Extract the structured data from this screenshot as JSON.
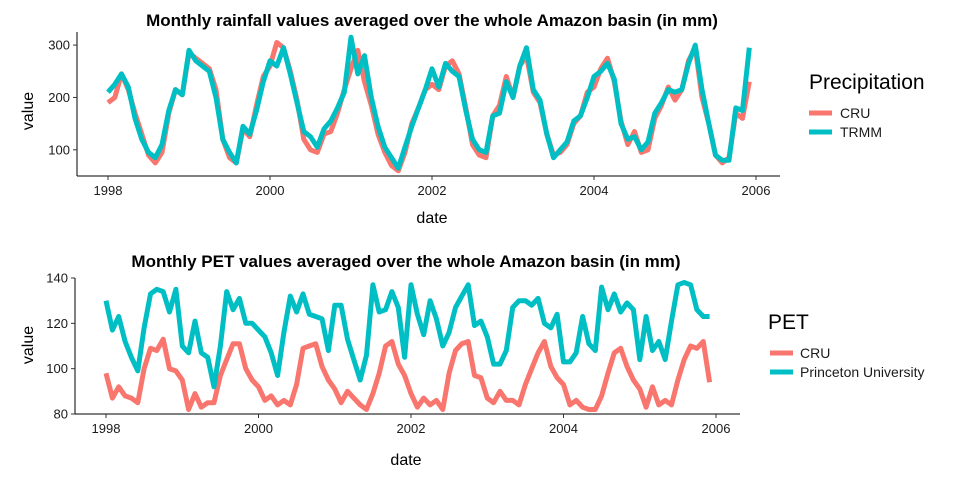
{
  "chart_data": [
    {
      "type": "line",
      "title": "Monthly rainfall values averaged over the whole Amazon basin (in mm)",
      "xlabel": "date",
      "ylabel": "value",
      "xlim": [
        "1998-01",
        "2005-12"
      ],
      "ylim": [
        50,
        325
      ],
      "x_ticks": [
        "1998",
        "2000",
        "2002",
        "2004",
        "2006"
      ],
      "y_ticks": [
        100,
        200,
        300
      ],
      "grid": false,
      "legend": {
        "title": "Precipitation",
        "position": "right"
      },
      "x": [
        "1998-01",
        "1998-02",
        "1998-03",
        "1998-04",
        "1998-05",
        "1998-06",
        "1998-07",
        "1998-08",
        "1998-09",
        "1998-10",
        "1998-11",
        "1998-12",
        "1999-01",
        "1999-02",
        "1999-03",
        "1999-04",
        "1999-05",
        "1999-06",
        "1999-07",
        "1999-08",
        "1999-09",
        "1999-10",
        "1999-11",
        "1999-12",
        "2000-01",
        "2000-02",
        "2000-03",
        "2000-04",
        "2000-05",
        "2000-06",
        "2000-07",
        "2000-08",
        "2000-09",
        "2000-10",
        "2000-11",
        "2000-12",
        "2001-01",
        "2001-02",
        "2001-03",
        "2001-04",
        "2001-05",
        "2001-06",
        "2001-07",
        "2001-08",
        "2001-09",
        "2001-10",
        "2001-11",
        "2001-12",
        "2002-01",
        "2002-02",
        "2002-03",
        "2002-04",
        "2002-05",
        "2002-06",
        "2002-07",
        "2002-08",
        "2002-09",
        "2002-10",
        "2002-11",
        "2002-12",
        "2003-01",
        "2003-02",
        "2003-03",
        "2003-04",
        "2003-05",
        "2003-06",
        "2003-07",
        "2003-08",
        "2003-09",
        "2003-10",
        "2003-11",
        "2003-12",
        "2004-01",
        "2004-02",
        "2004-03",
        "2004-04",
        "2004-05",
        "2004-06",
        "2004-07",
        "2004-08",
        "2004-09",
        "2004-10",
        "2004-11",
        "2004-12",
        "2005-01",
        "2005-02",
        "2005-03",
        "2005-04",
        "2005-05",
        "2005-06",
        "2005-07",
        "2005-08",
        "2005-09",
        "2005-10",
        "2005-11",
        "2005-12"
      ],
      "series": [
        {
          "name": "CRU",
          "color": "#F8766D",
          "values": [
            190,
            200,
            245,
            215,
            170,
            130,
            90,
            75,
            95,
            170,
            215,
            205,
            285,
            275,
            265,
            255,
            215,
            120,
            85,
            75,
            140,
            125,
            185,
            240,
            260,
            305,
            295,
            250,
            195,
            120,
            100,
            95,
            130,
            135,
            170,
            215,
            255,
            290,
            230,
            185,
            130,
            95,
            70,
            60,
            95,
            150,
            180,
            215,
            225,
            215,
            260,
            270,
            245,
            180,
            110,
            90,
            85,
            165,
            185,
            240,
            200,
            260,
            280,
            210,
            190,
            130,
            90,
            95,
            110,
            150,
            165,
            210,
            220,
            255,
            275,
            230,
            155,
            110,
            135,
            95,
            100,
            160,
            185,
            220,
            195,
            215,
            270,
            295,
            200,
            150,
            90,
            75,
            85,
            170,
            160,
            230
          ]
        },
        {
          "name": "TRMM",
          "color": "#00BFC4",
          "values": [
            210,
            225,
            245,
            220,
            160,
            120,
            95,
            85,
            110,
            175,
            215,
            205,
            290,
            270,
            260,
            250,
            200,
            120,
            95,
            75,
            145,
            130,
            175,
            230,
            270,
            260,
            295,
            245,
            190,
            135,
            125,
            105,
            140,
            155,
            180,
            210,
            315,
            245,
            280,
            200,
            145,
            105,
            85,
            65,
            105,
            145,
            180,
            215,
            255,
            220,
            265,
            250,
            240,
            175,
            120,
            100,
            95,
            165,
            170,
            230,
            200,
            260,
            295,
            215,
            195,
            130,
            85,
            100,
            115,
            155,
            165,
            200,
            240,
            250,
            265,
            235,
            150,
            120,
            125,
            100,
            115,
            170,
            190,
            215,
            210,
            215,
            265,
            300,
            215,
            150,
            90,
            80,
            80,
            180,
            175,
            295
          ]
        }
      ]
    },
    {
      "type": "line",
      "title": "Monthly PET values averaged over the whole Amazon basin (in mm)",
      "xlabel": "date",
      "ylabel": "value",
      "xlim": [
        "1998-01",
        "2005-12"
      ],
      "ylim": [
        80,
        140
      ],
      "x_ticks": [
        "1998",
        "2000",
        "2002",
        "2004",
        "2006"
      ],
      "y_ticks": [
        80,
        100,
        120,
        140
      ],
      "grid": false,
      "legend": {
        "title": "PET",
        "position": "right"
      },
      "x": [
        "1998-01",
        "1998-02",
        "1998-03",
        "1998-04",
        "1998-05",
        "1998-06",
        "1998-07",
        "1998-08",
        "1998-09",
        "1998-10",
        "1998-11",
        "1998-12",
        "1999-01",
        "1999-02",
        "1999-03",
        "1999-04",
        "1999-05",
        "1999-06",
        "1999-07",
        "1999-08",
        "1999-09",
        "1999-10",
        "1999-11",
        "1999-12",
        "2000-01",
        "2000-02",
        "2000-03",
        "2000-04",
        "2000-05",
        "2000-06",
        "2000-07",
        "2000-08",
        "2000-09",
        "2000-10",
        "2000-11",
        "2000-12",
        "2001-01",
        "2001-02",
        "2001-03",
        "2001-04",
        "2001-05",
        "2001-06",
        "2001-07",
        "2001-08",
        "2001-09",
        "2001-10",
        "2001-11",
        "2001-12",
        "2002-01",
        "2002-02",
        "2002-03",
        "2002-04",
        "2002-05",
        "2002-06",
        "2002-07",
        "2002-08",
        "2002-09",
        "2002-10",
        "2002-11",
        "2002-12",
        "2003-01",
        "2003-02",
        "2003-03",
        "2003-04",
        "2003-05",
        "2003-06",
        "2003-07",
        "2003-08",
        "2003-09",
        "2003-10",
        "2003-11",
        "2003-12",
        "2004-01",
        "2004-02",
        "2004-03",
        "2004-04",
        "2004-05",
        "2004-06",
        "2004-07",
        "2004-08",
        "2004-09",
        "2004-10",
        "2004-11",
        "2004-12",
        "2005-01",
        "2005-02",
        "2005-03",
        "2005-04",
        "2005-05",
        "2005-06",
        "2005-07",
        "2005-08",
        "2005-09",
        "2005-10",
        "2005-11",
        "2005-12"
      ],
      "series": [
        {
          "name": "CRU",
          "color": "#F8766D",
          "values": [
            98,
            87,
            92,
            88,
            87,
            85,
            100,
            109,
            108,
            113,
            100,
            99,
            95,
            82,
            89,
            83,
            85,
            85,
            97,
            104,
            111,
            111,
            100,
            95,
            92,
            86,
            88,
            84,
            86,
            84,
            93,
            109,
            110,
            111,
            101,
            95,
            91,
            85,
            90,
            87,
            84,
            82,
            89,
            98,
            110,
            112,
            102,
            97,
            89,
            83,
            87,
            84,
            86,
            82,
            98,
            108,
            111,
            112,
            97,
            96,
            87,
            85,
            90,
            86,
            86,
            84,
            93,
            100,
            107,
            112,
            101,
            96,
            93,
            84,
            86,
            83,
            82,
            82,
            88,
            98,
            107,
            109,
            101,
            95,
            91,
            83,
            92,
            84,
            86,
            84,
            95,
            104,
            110,
            109,
            112,
            94
          ]
        },
        {
          "name": "Princeton University",
          "color": "#00BFC4",
          "values": [
            130,
            117,
            123,
            112,
            105,
            99,
            118,
            133,
            135,
            134,
            125,
            135,
            110,
            107,
            121,
            107,
            105,
            92,
            110,
            134,
            126,
            131,
            120,
            120,
            117,
            114,
            107,
            97,
            116,
            132,
            125,
            133,
            124,
            123,
            122,
            108,
            128,
            128,
            113,
            104,
            95,
            106,
            137,
            125,
            126,
            134,
            127,
            105,
            137,
            124,
            115,
            130,
            122,
            110,
            116,
            127,
            132,
            137,
            119,
            121,
            114,
            102,
            102,
            108,
            127,
            130,
            130,
            128,
            131,
            120,
            118,
            124,
            103,
            103,
            107,
            123,
            111,
            108,
            136,
            126,
            133,
            125,
            129,
            126,
            104,
            123,
            108,
            112,
            104,
            121,
            137,
            138,
            137,
            126,
            123,
            123
          ]
        }
      ]
    }
  ]
}
